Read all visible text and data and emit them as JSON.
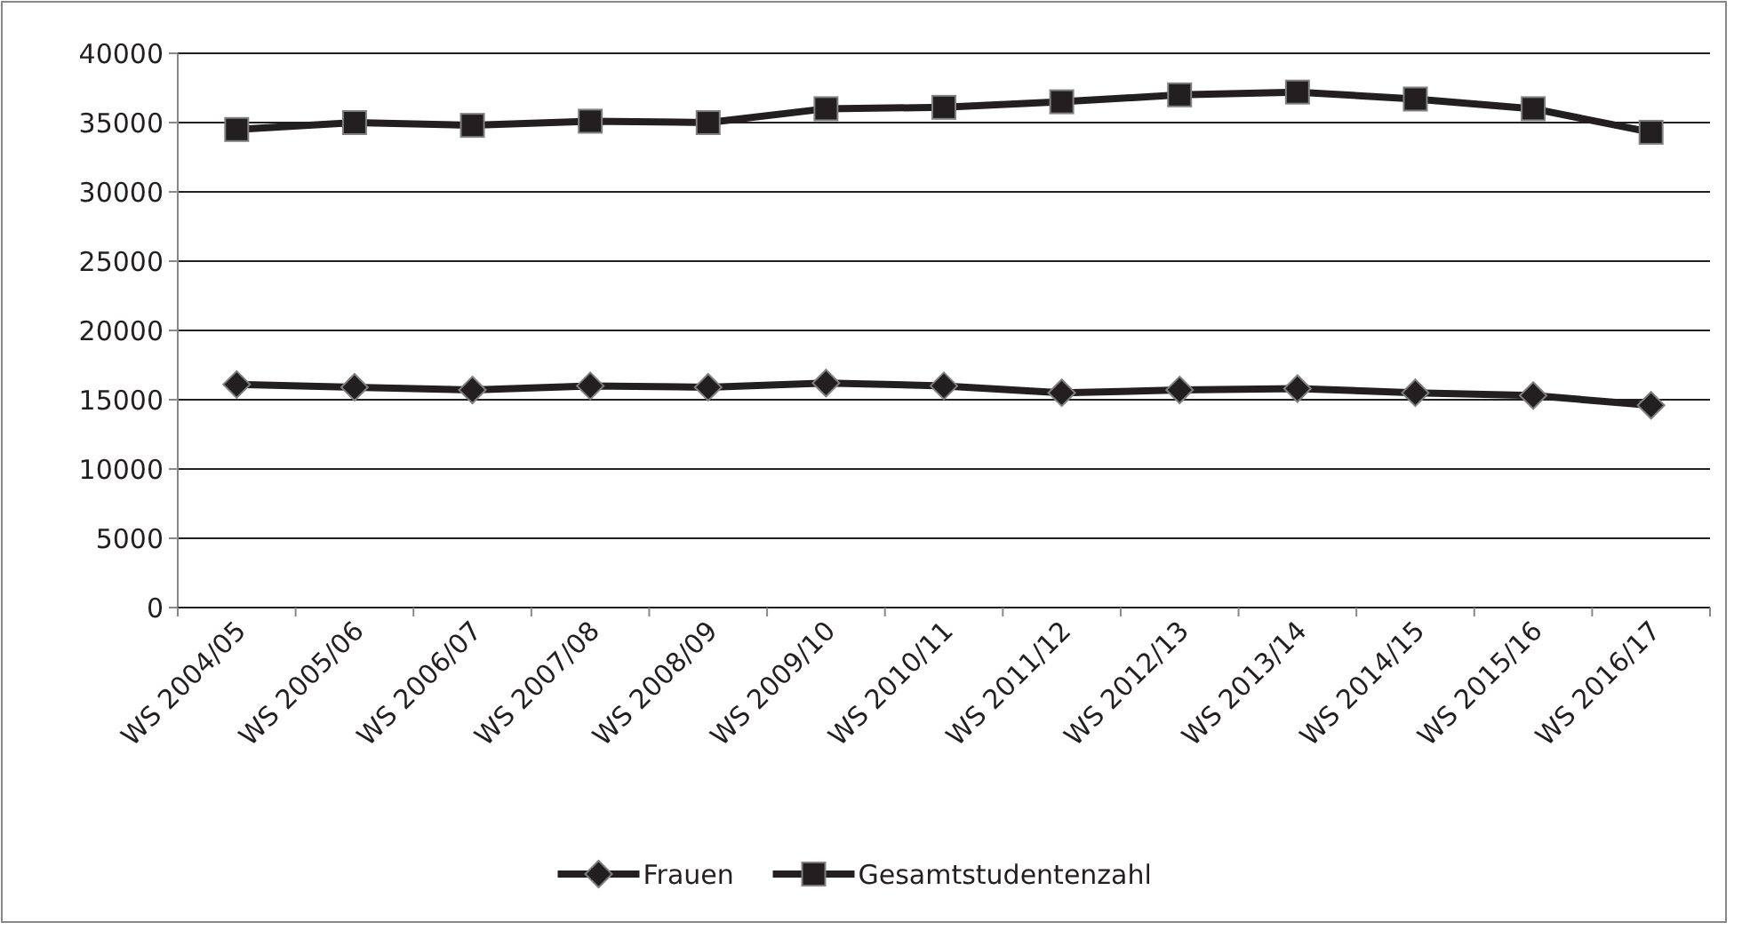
{
  "chart_data": {
    "type": "line",
    "categories": [
      "WS 2004/05",
      "WS 2005/06",
      "WS 2006/07",
      "WS 2007/08",
      "WS 2008/09",
      "WS 2009/10",
      "WS 2010/11",
      "WS 2011/12",
      "WS 2012/13",
      "WS 2013/14",
      "WS 2014/15",
      "WS 2015/16",
      "WS 2016/17"
    ],
    "series": [
      {
        "name": "Frauen",
        "color": "#231f20",
        "marker": "diamond",
        "values": [
          16100,
          15900,
          15700,
          16000,
          15900,
          16200,
          16000,
          15500,
          15700,
          15800,
          15500,
          15300,
          14600
        ]
      },
      {
        "name": "Gesamtstudentenzahl",
        "color": "#231f20",
        "marker": "square",
        "values": [
          34500,
          35000,
          34800,
          35100,
          35000,
          36000,
          36100,
          36500,
          37000,
          37200,
          36700,
          36000,
          34300
        ]
      }
    ],
    "ylim": [
      0,
      40000
    ],
    "yticks": [
      0,
      5000,
      10000,
      15000,
      20000,
      25000,
      30000,
      35000,
      40000
    ],
    "grid": "y",
    "legend": "bottom"
  }
}
